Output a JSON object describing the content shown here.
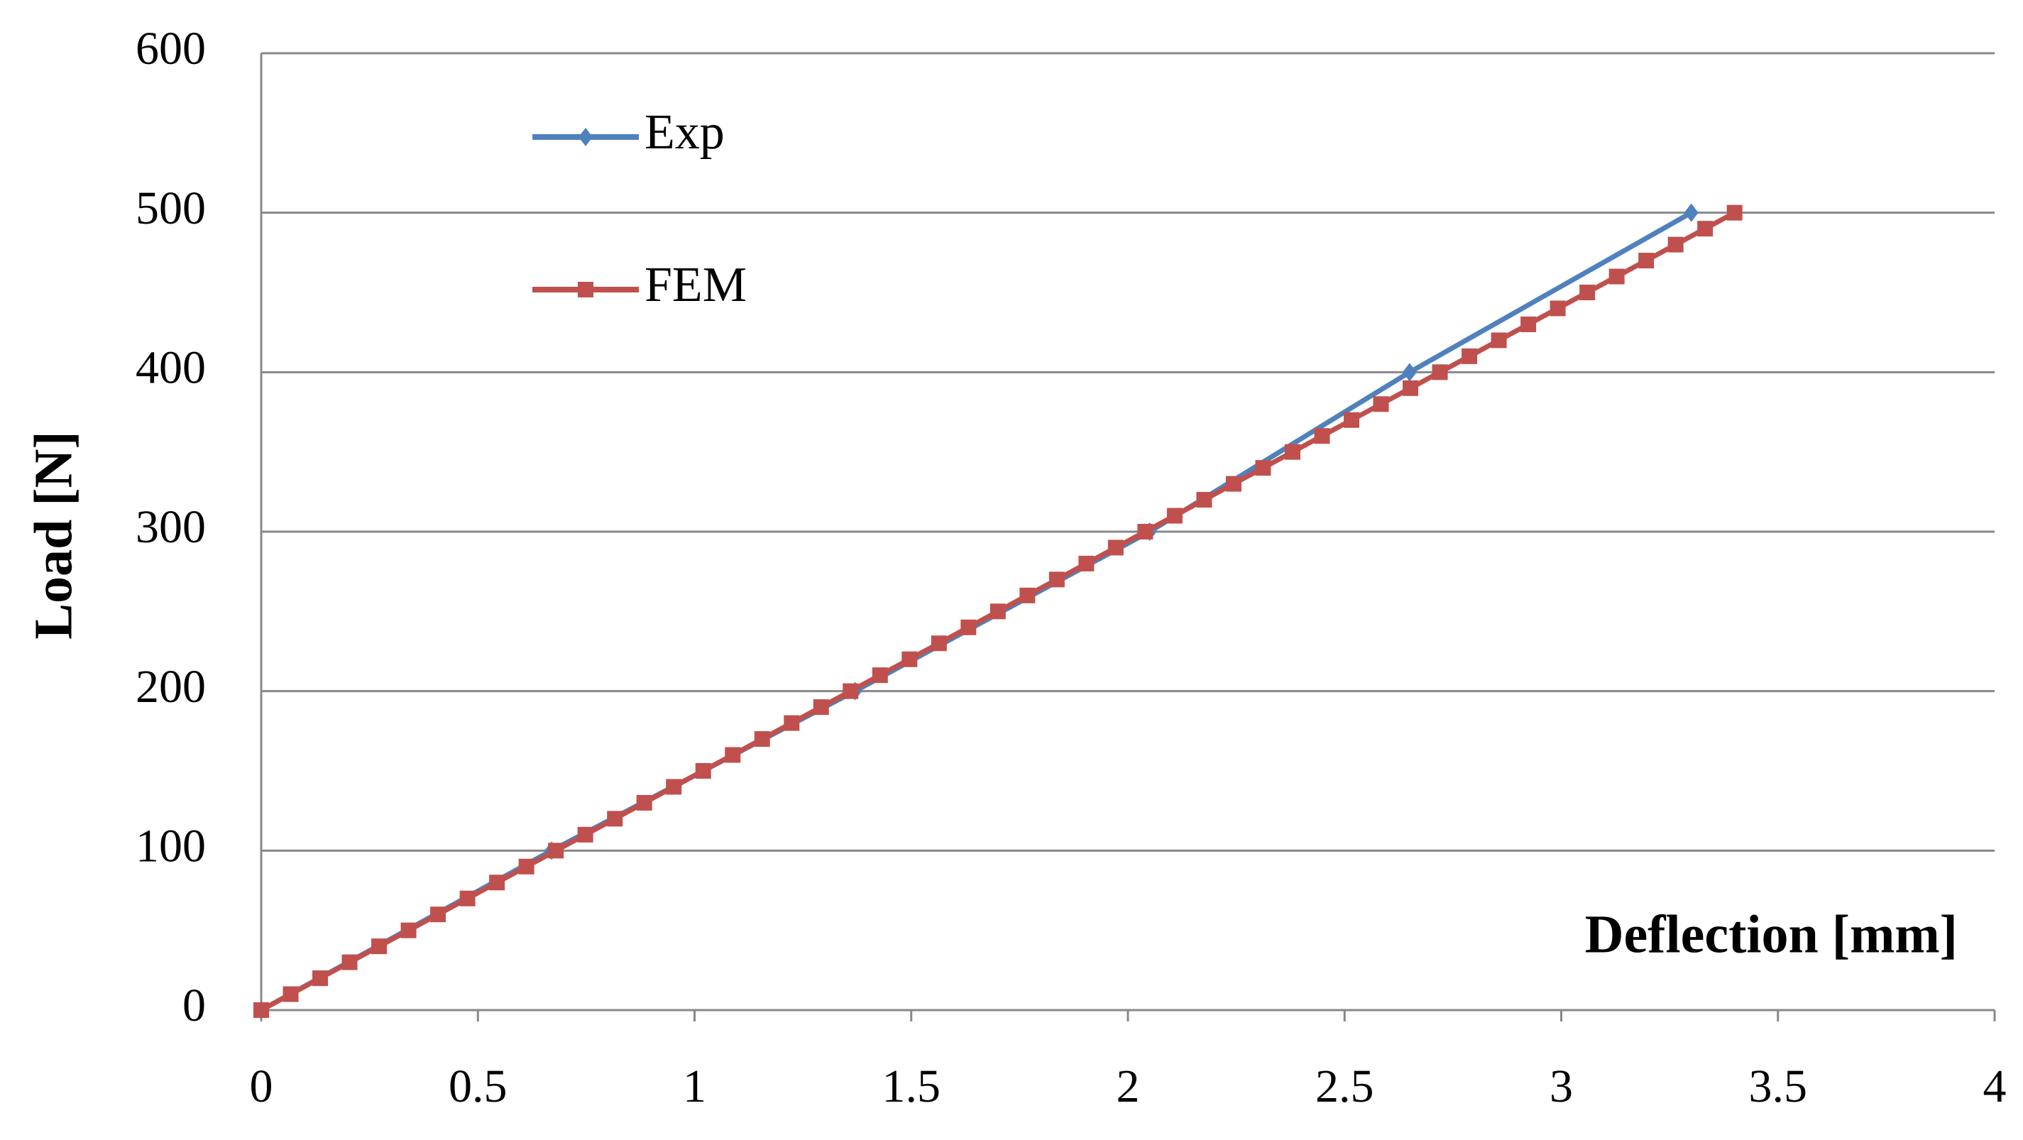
{
  "chart_data": {
    "type": "line",
    "x_label": "Deflection [mm]",
    "y_label": "Load [N]",
    "xlim": [
      0,
      4
    ],
    "xticks": [
      0,
      0.5,
      1,
      1.5,
      2,
      2.5,
      3,
      3.5,
      4
    ],
    "ylim": [
      0,
      600
    ],
    "yticks": [
      0,
      100,
      200,
      300,
      400,
      500,
      600
    ],
    "grid": true,
    "legend": "upper left",
    "series": [
      {
        "name": "Exp",
        "color": "#4f81bd",
        "marker": "diamond",
        "x": [
          0,
          0.67,
          1.37,
          2.05,
          2.65,
          3.3
        ],
        "values": [
          0,
          100,
          200,
          300,
          400,
          500
        ]
      },
      {
        "name": "FEM",
        "color": "#c0504d",
        "marker": "square",
        "x": [
          0,
          0.068,
          0.136,
          0.204,
          0.272,
          0.34,
          0.408,
          0.476,
          0.544,
          0.612,
          0.68,
          0.748,
          0.816,
          0.884,
          0.952,
          1.02,
          1.088,
          1.156,
          1.224,
          1.292,
          1.36,
          1.428,
          1.496,
          1.564,
          1.632,
          1.7,
          1.768,
          1.836,
          1.904,
          1.972,
          2.04,
          2.108,
          2.176,
          2.244,
          2.312,
          2.38,
          2.448,
          2.516,
          2.584,
          2.652,
          2.72,
          2.788,
          2.856,
          2.924,
          2.992,
          3.06,
          3.128,
          3.196,
          3.264,
          3.332,
          3.4
        ],
        "values": [
          0,
          10,
          20,
          30,
          40,
          50,
          60,
          70,
          80,
          90,
          100,
          110,
          120,
          130,
          140,
          150,
          160,
          170,
          180,
          190,
          200,
          210,
          220,
          230,
          240,
          250,
          260,
          270,
          280,
          290,
          300,
          310,
          320,
          330,
          340,
          350,
          360,
          370,
          380,
          390,
          400,
          410,
          420,
          430,
          440,
          450,
          460,
          470,
          480,
          490,
          500
        ]
      }
    ]
  }
}
